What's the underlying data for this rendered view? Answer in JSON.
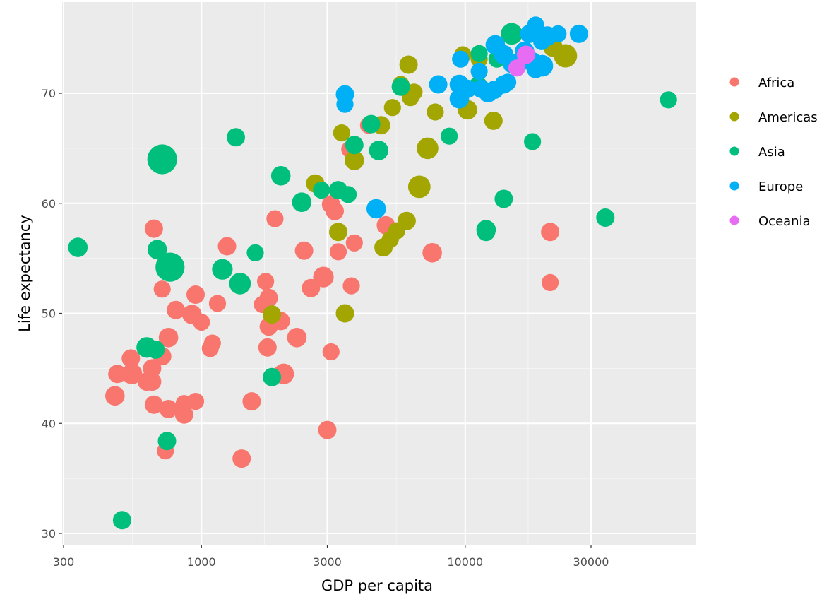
{
  "chart_data": {
    "type": "scatter",
    "title": "",
    "xlabel": "GDP per capita",
    "ylabel": "Life expectancy",
    "x_scale": "log10",
    "xlim": [
      290,
      80000
    ],
    "ylim": [
      29,
      77
    ],
    "x_ticks": [
      300,
      1000,
      3000,
      10000,
      30000
    ],
    "x_tick_labels": [
      "300",
      "1000",
      "3000",
      "10000",
      "30000"
    ],
    "y_ticks": [
      30,
      40,
      50,
      60,
      70
    ],
    "y_tick_labels": [
      "30",
      "40",
      "50",
      "60",
      "70"
    ],
    "grid": true,
    "background": "#ebebeb",
    "legend_position": "right",
    "size_encodes": "population",
    "series": [
      {
        "name": "Africa",
        "color": "#F8766D",
        "points": [
          [
            1900,
            58.6,
            0.4
          ],
          [
            660,
            57.7,
            0.5
          ],
          [
            1250,
            56.1,
            0.5
          ],
          [
            2450,
            55.7,
            0.5
          ],
          [
            3100,
            59.9,
            0.5
          ],
          [
            3200,
            59.3,
            0.5
          ],
          [
            5000,
            58.0,
            0.5
          ],
          [
            3800,
            56.4,
            0.4
          ],
          [
            3300,
            55.6,
            0.4
          ],
          [
            7500,
            55.5,
            0.6
          ],
          [
            2900,
            53.3,
            0.7
          ],
          [
            2600,
            52.3,
            0.5
          ],
          [
            3700,
            52.5,
            0.4
          ],
          [
            950,
            51.7,
            0.5
          ],
          [
            1750,
            52.9,
            0.4
          ],
          [
            1800,
            51.4,
            0.5
          ],
          [
            1150,
            50.9,
            0.4
          ],
          [
            1700,
            50.8,
            0.4
          ],
          [
            710,
            52.2,
            0.4
          ],
          [
            800,
            50.3,
            0.5
          ],
          [
            920,
            49.9,
            0.6
          ],
          [
            1000,
            49.2,
            0.4
          ],
          [
            1800,
            48.8,
            0.5
          ],
          [
            2000,
            49.3,
            0.5
          ],
          [
            2300,
            47.8,
            0.6
          ],
          [
            750,
            47.8,
            0.6
          ],
          [
            1100,
            47.3,
            0.4
          ],
          [
            1080,
            46.8,
            0.4
          ],
          [
            1780,
            46.9,
            0.5
          ],
          [
            3100,
            46.5,
            0.4
          ],
          [
            3650,
            64.9,
            0.4
          ],
          [
            4300,
            67.1,
            0.4
          ],
          [
            710,
            46.1,
            0.5
          ],
          [
            540,
            45.9,
            0.5
          ],
          [
            480,
            44.5,
            0.5
          ],
          [
            545,
            44.5,
            0.7
          ],
          [
            650,
            45.0,
            0.5
          ],
          [
            620,
            43.8,
            0.5
          ],
          [
            650,
            43.8,
            0.5
          ],
          [
            470,
            42.5,
            0.6
          ],
          [
            660,
            41.7,
            0.5
          ],
          [
            750,
            41.3,
            0.5
          ],
          [
            860,
            41.8,
            0.4
          ],
          [
            950,
            42.0,
            0.4
          ],
          [
            1550,
            42.0,
            0.5
          ],
          [
            860,
            40.8,
            0.5
          ],
          [
            2050,
            44.5,
            0.7
          ],
          [
            3000,
            39.4,
            0.5
          ],
          [
            730,
            37.5,
            0.4
          ],
          [
            1420,
            36.8,
            0.5
          ],
          [
            21000,
            57.4,
            0.5
          ],
          [
            21000,
            52.8,
            0.4
          ]
        ]
      },
      {
        "name": "Americas",
        "color": "#A3A500",
        "points": [
          [
            6100,
            72.6,
            0.5
          ],
          [
            5700,
            70.8,
            0.4
          ],
          [
            6400,
            70.1,
            0.4
          ],
          [
            6200,
            69.6,
            0.4
          ],
          [
            5300,
            68.7,
            0.4
          ],
          [
            7700,
            68.3,
            0.4
          ],
          [
            9800,
            73.5,
            0.4
          ],
          [
            11300,
            73.1,
            0.4
          ],
          [
            10200,
            68.5,
            0.6
          ],
          [
            12800,
            67.5,
            0.5
          ],
          [
            21500,
            74.2,
            0.6
          ],
          [
            24000,
            73.4,
            1.0
          ],
          [
            3400,
            66.4,
            0.4
          ],
          [
            4800,
            67.1,
            0.5
          ],
          [
            3800,
            63.9,
            0.6
          ],
          [
            2700,
            61.8,
            0.5
          ],
          [
            6700,
            61.5,
            0.9
          ],
          [
            7200,
            65.0,
            0.8
          ],
          [
            3300,
            57.4,
            0.5
          ],
          [
            6000,
            58.4,
            0.5
          ],
          [
            5500,
            57.5,
            0.4
          ],
          [
            5200,
            56.7,
            0.4
          ],
          [
            4900,
            56.0,
            0.5
          ],
          [
            1850,
            49.9,
            0.5
          ],
          [
            3500,
            50.0,
            0.5
          ]
        ]
      },
      {
        "name": "Asia",
        "color": "#00BF7D",
        "points": [
          [
            15000,
            75.4,
            0.8
          ],
          [
            11300,
            73.6,
            0.4
          ],
          [
            13200,
            73.1,
            0.4
          ],
          [
            11200,
            70.7,
            0.5
          ],
          [
            5700,
            70.6,
            0.5
          ],
          [
            8700,
            66.1,
            0.4
          ],
          [
            18000,
            65.6,
            0.4
          ],
          [
            4400,
            67.2,
            0.5
          ],
          [
            3800,
            65.3,
            0.5
          ],
          [
            4700,
            64.8,
            0.6
          ],
          [
            1350,
            66.0,
            0.5
          ],
          [
            2000,
            62.5,
            0.6
          ],
          [
            2400,
            60.1,
            0.6
          ],
          [
            2850,
            61.2,
            0.4
          ],
          [
            3300,
            61.2,
            0.5
          ],
          [
            3600,
            60.8,
            0.4
          ],
          [
            12000,
            57.6,
            0.6
          ],
          [
            12000,
            57.4,
            0.5
          ],
          [
            14000,
            60.4,
            0.5
          ],
          [
            34000,
            58.7,
            0.5
          ],
          [
            59000,
            69.4,
            0.4
          ],
          [
            710,
            64.0,
            1.9
          ],
          [
            680,
            55.8,
            0.6
          ],
          [
            760,
            54.2,
            1.8
          ],
          [
            1600,
            55.5,
            0.4
          ],
          [
            1200,
            54.0,
            0.7
          ],
          [
            1400,
            52.7,
            0.8
          ],
          [
            620,
            46.9,
            0.7
          ],
          [
            670,
            46.7,
            0.5
          ],
          [
            1850,
            44.2,
            0.5
          ],
          [
            340,
            56.0,
            0.6
          ],
          [
            740,
            38.4,
            0.5
          ],
          [
            500,
            31.2,
            0.5
          ]
        ]
      },
      {
        "name": "Europe",
        "color": "#00B0F6",
        "points": [
          [
            18500,
            76.2,
            0.4
          ],
          [
            22500,
            75.4,
            0.4
          ],
          [
            27000,
            75.4,
            0.5
          ],
          [
            20500,
            75.2,
            0.6
          ],
          [
            17500,
            75.4,
            0.5
          ],
          [
            19500,
            74.7,
            0.4
          ],
          [
            13000,
            74.4,
            0.6
          ],
          [
            9600,
            73.1,
            0.4
          ],
          [
            14000,
            73.5,
            0.6
          ],
          [
            16800,
            73.8,
            0.6
          ],
          [
            18000,
            72.9,
            0.5
          ],
          [
            16000,
            72.8,
            0.6
          ],
          [
            19600,
            72.5,
            0.8
          ],
          [
            15000,
            72.6,
            0.4
          ],
          [
            18500,
            72.2,
            0.5
          ],
          [
            11300,
            72.0,
            0.4
          ],
          [
            9500,
            70.8,
            0.6
          ],
          [
            10200,
            70.4,
            0.5
          ],
          [
            11500,
            70.4,
            0.5
          ],
          [
            12200,
            70.0,
            0.5
          ],
          [
            12900,
            70.3,
            0.5
          ],
          [
            14000,
            70.8,
            0.5
          ],
          [
            14500,
            71.0,
            0.4
          ],
          [
            7900,
            70.8,
            0.5
          ],
          [
            9500,
            69.5,
            0.6
          ],
          [
            3500,
            69.9,
            0.5
          ],
          [
            3500,
            69.0,
            0.4
          ],
          [
            4600,
            59.5,
            0.6
          ]
        ]
      },
      {
        "name": "Oceania",
        "color": "#E76BF3",
        "points": [
          [
            17000,
            73.5,
            0.5
          ],
          [
            15700,
            72.3,
            0.4
          ]
        ]
      }
    ]
  }
}
